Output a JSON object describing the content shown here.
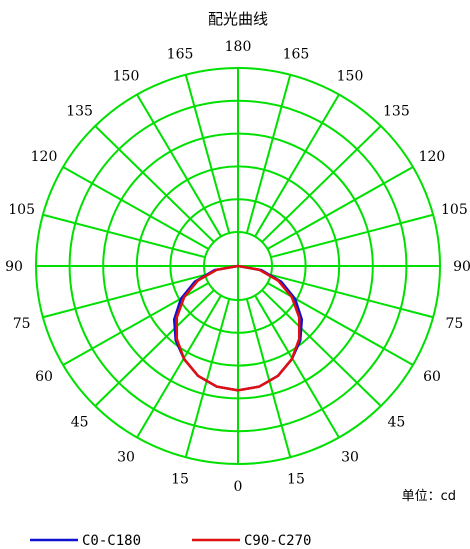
{
  "chart_data": {
    "type": "polar",
    "title": "配光曲线",
    "unit_label": "单位：cd",
    "angle_labels_left": [
      "180",
      "165",
      "150",
      "135",
      "120",
      "105",
      "90",
      "75",
      "60",
      "45",
      "30",
      "15",
      "0"
    ],
    "angle_labels_right": [
      "165",
      "150",
      "135",
      "120",
      "105",
      "90",
      "75",
      "60",
      "45",
      "30",
      "15"
    ],
    "angle_step_deg": 15,
    "radial_rings": 5,
    "grid": true,
    "grid_color": "#00e000",
    "series": [
      {
        "name": "C0-C180",
        "color": "#1010d0",
        "angles": [
          0,
          10,
          20,
          30,
          40,
          50,
          60,
          70,
          80,
          90
        ],
        "values": [
          1.0,
          0.985,
          0.94,
          0.866,
          0.78,
          0.67,
          0.53,
          0.37,
          0.19,
          0.0
        ]
      },
      {
        "name": "C90-C270",
        "color": "#e01010",
        "angles": [
          0,
          10,
          20,
          30,
          40,
          50,
          60,
          70,
          80,
          90
        ],
        "values": [
          1.0,
          0.985,
          0.94,
          0.866,
          0.766,
          0.643,
          0.5,
          0.342,
          0.174,
          0.0
        ]
      }
    ],
    "legend_position": "bottom"
  }
}
